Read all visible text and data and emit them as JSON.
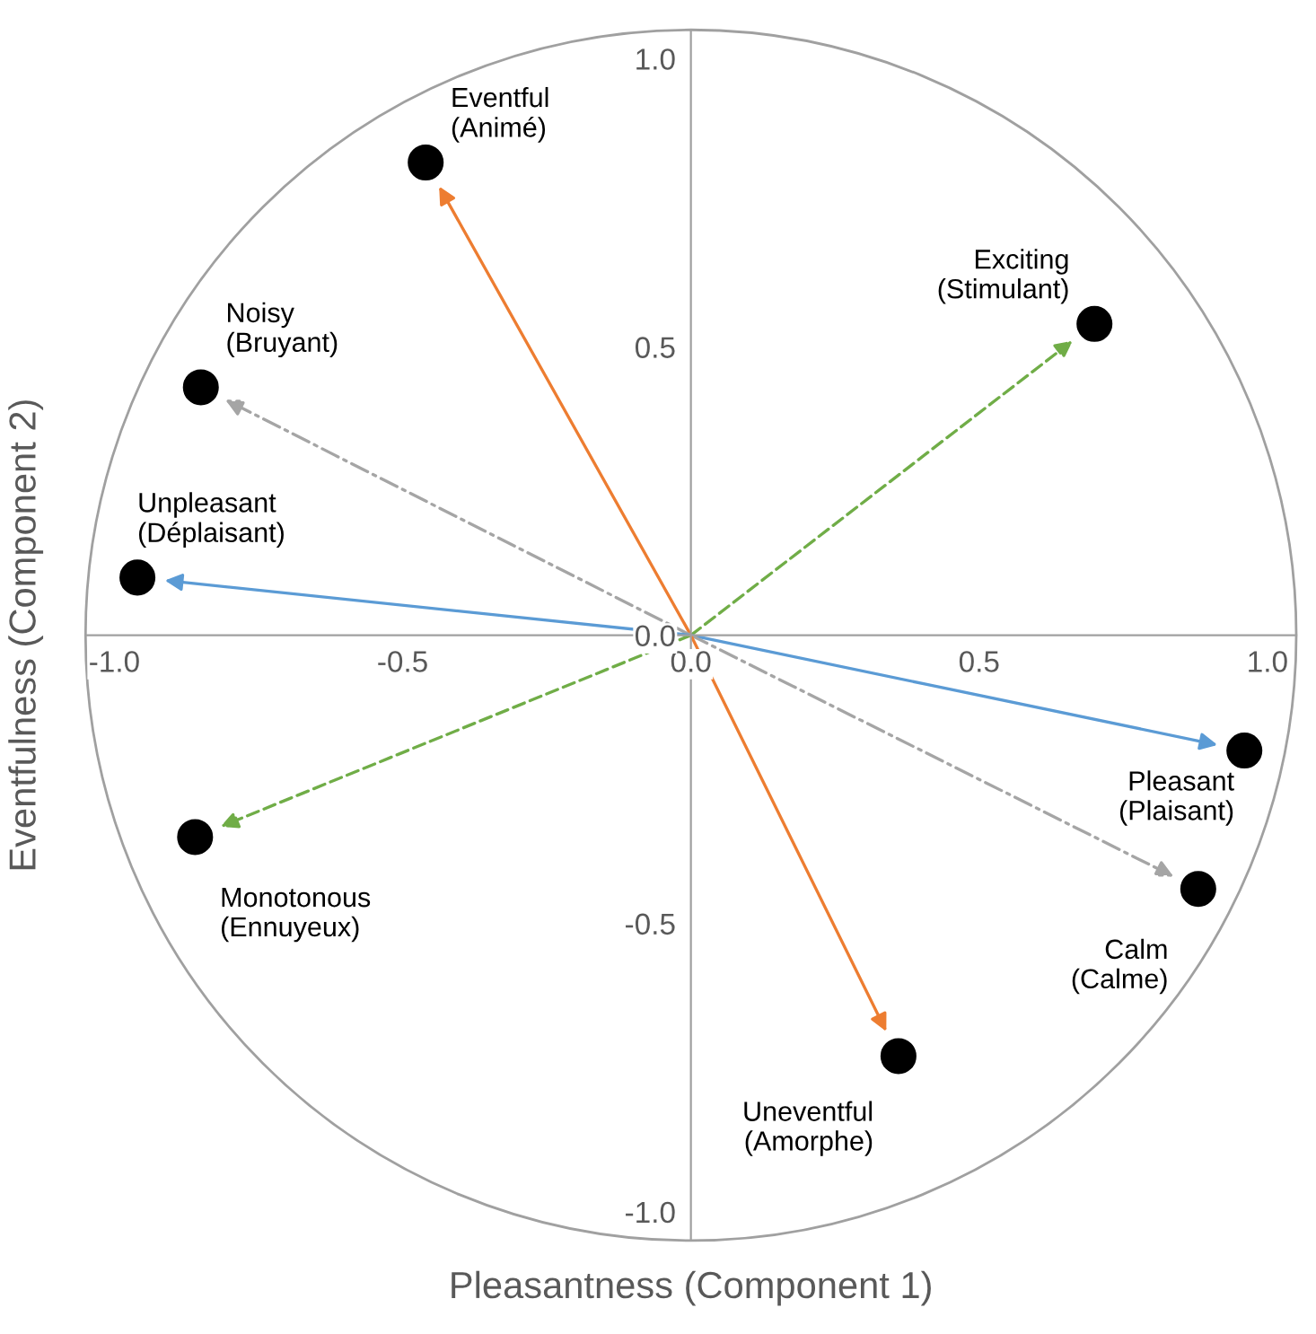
{
  "chart_data": {
    "type": "scatter",
    "xlabel": "Pleasantness (Component 1)",
    "ylabel": "Eventfulness (Component 2)",
    "xlim": [
      -1.05,
      1.05
    ],
    "ylim": [
      -1.05,
      1.05
    ],
    "xticks": [
      {
        "value": -1.0,
        "label": "-1.0"
      },
      {
        "value": -0.5,
        "label": "-0.5"
      },
      {
        "value": 0.0,
        "label": "0.0"
      },
      {
        "value": 0.5,
        "label": "0.5"
      },
      {
        "value": 1.0,
        "label": "1.0"
      }
    ],
    "yticks": [
      {
        "value": -1.0,
        "label": "-1.0"
      },
      {
        "value": -0.5,
        "label": "-0.5"
      },
      {
        "value": 0.0,
        "label": "0.0"
      },
      {
        "value": 0.5,
        "label": "0.5"
      },
      {
        "value": 1.0,
        "label": "1.0"
      }
    ],
    "grid": false,
    "legend": false,
    "marker": "circle",
    "series": [
      {
        "color": "#000000",
        "x": [
          -0.46,
          0.7,
          -0.85,
          -0.96,
          -0.86,
          0.96,
          0.88,
          0.36
        ],
        "values": [
          0.82,
          0.54,
          0.43,
          0.1,
          -0.35,
          -0.2,
          -0.44,
          -0.73
        ],
        "value_labels": [
          "Eventful\n(Animé)",
          "Exciting\n(Stimulant)",
          "Noisy\n(Bruyant)",
          "Unpleasant\n(Déplaisant)",
          "Monotonous\n(Ennuyeux)",
          "Pleasant\n(Plaisant)",
          "Calm\n(Calme)",
          "Uneventful\n(Amorphe)"
        ]
      }
    ]
  }
}
